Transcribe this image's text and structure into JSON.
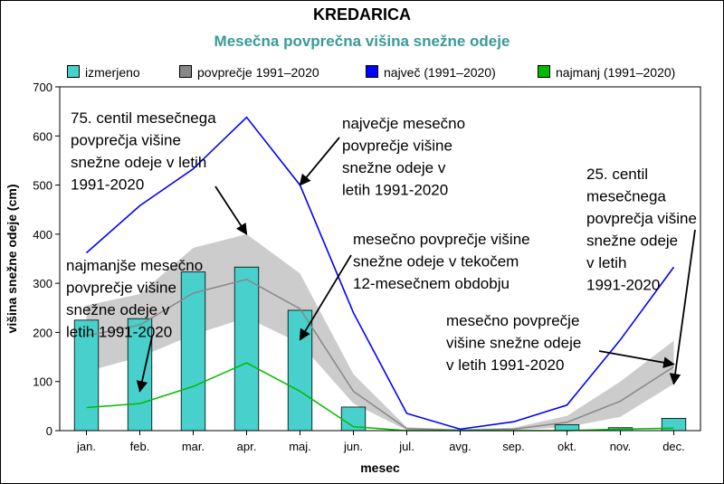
{
  "chart_data": {
    "type": "bar",
    "title": "KREDARICA",
    "subtitle": "Mesečna povprečna višina snežne odeje",
    "xlabel": "mesec",
    "ylabel": "višina snežne odeje (cm)",
    "ylim": [
      0,
      700
    ],
    "yticks": [
      0,
      100,
      200,
      300,
      400,
      500,
      600,
      700
    ],
    "grid": false,
    "legend_position": "top",
    "categories": [
      "jan.",
      "feb.",
      "mar.",
      "apr.",
      "maj.",
      "jun.",
      "jul.",
      "avg.",
      "sep.",
      "okt.",
      "nov.",
      "dec."
    ],
    "series": [
      {
        "name": "izmerjeno",
        "kind": "bar",
        "color": "#48d1cc",
        "values": [
          225,
          228,
          323,
          333,
          245,
          48,
          0,
          0,
          0,
          12,
          6,
          25
        ]
      },
      {
        "name": "povprečje 1991–2020",
        "kind": "line",
        "color": "#888888",
        "values": [
          193,
          215,
          280,
          308,
          248,
          80,
          4,
          1,
          3,
          17,
          60,
          130
        ]
      },
      {
        "name": "največ (1991–2020)",
        "kind": "line",
        "color": "#0000ff",
        "values": [
          362,
          458,
          533,
          638,
          500,
          240,
          35,
          3,
          18,
          52,
          185,
          333
        ]
      },
      {
        "name": "najmanj (1991–2020)",
        "kind": "line",
        "color": "#00bb00",
        "values": [
          47,
          55,
          90,
          138,
          80,
          8,
          0,
          0,
          0,
          0,
          3,
          5
        ]
      }
    ],
    "band": {
      "color": "#cccccc",
      "lower": [
        120,
        150,
        195,
        230,
        178,
        55,
        1,
        0,
        1,
        7,
        28,
        95
      ],
      "upper": [
        255,
        278,
        372,
        400,
        320,
        115,
        7,
        3,
        6,
        30,
        100,
        183
      ]
    },
    "annotations": [
      {
        "text": [
          "75. centil mesečnega",
          "povprečja višine",
          "snežne odeje v letih",
          "1991-2020"
        ],
        "target": {
          "x": "apr.",
          "y": 400
        }
      },
      {
        "text": [
          "največje mesečno",
          "povprečje višine",
          "snežne odeje v",
          "letih 1991-2020"
        ],
        "target": {
          "x": "maj.",
          "y": 500
        }
      },
      {
        "text": [
          "mesečno povprečje višine",
          "snežne odeje v tekočem",
          "12-mesečnem obdobju"
        ],
        "target": {
          "x": "maj.",
          "y": 185
        }
      },
      {
        "text": [
          "najmanjše mesečno",
          "povprečje višine",
          "snežne odeje v",
          "letih 1991-2020"
        ],
        "target": {
          "x": "feb.",
          "y": 80
        }
      },
      {
        "text": [
          "25. centil",
          "mesečnega",
          "povprečja višine",
          "snežne odeje",
          "v letih",
          "1991-2020"
        ],
        "target": {
          "x": "dec.",
          "y": 95
        }
      },
      {
        "text": [
          "mesečno povprečje",
          "višine snežne odeje",
          "v letih 1991-2020"
        ],
        "target": {
          "x": "dec.",
          "y": 135
        }
      }
    ]
  }
}
